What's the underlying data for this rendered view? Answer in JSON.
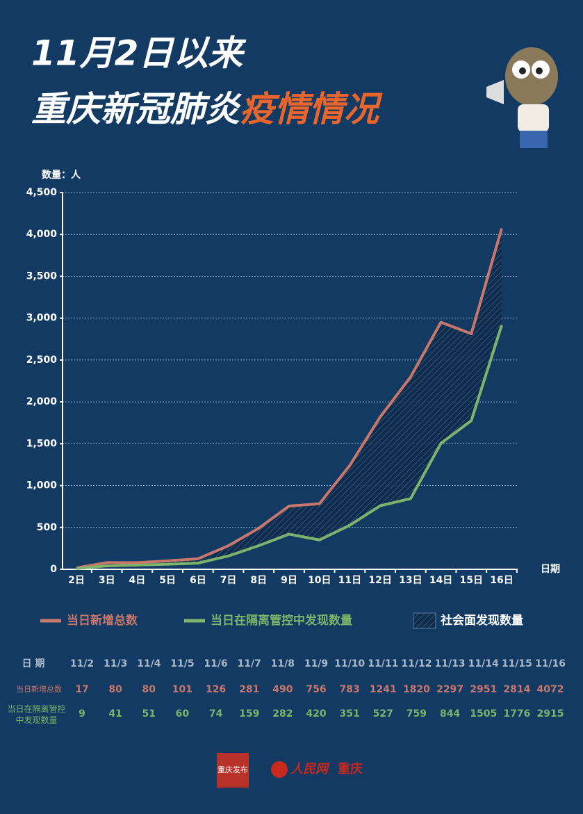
{
  "chart_data": {
    "type": "line",
    "title_line1": "11月2日以来",
    "title_line2_white": "重庆新冠肺炎",
    "title_line2_orange": "疫情情况",
    "y_label": "数量：人",
    "x_label": "日期",
    "categories": [
      "2日",
      "3日",
      "4日",
      "5日",
      "6日",
      "7日",
      "8日",
      "9日",
      "10日",
      "11日",
      "12日",
      "13日",
      "14日",
      "15日",
      "16日"
    ],
    "series": [
      {
        "name": "当日新增总数",
        "color": "#c9776b",
        "values": [
          17,
          80,
          80,
          101,
          126,
          281,
          490,
          756,
          783,
          1241,
          1820,
          2297,
          2951,
          2814,
          4072
        ]
      },
      {
        "name": "当日在隔离管控中发现数量",
        "color": "#7db36a",
        "values": [
          9,
          41,
          51,
          60,
          74,
          159,
          282,
          420,
          351,
          527,
          759,
          844,
          1505,
          1776,
          2915
        ]
      }
    ],
    "area_name": "社会面发现数量",
    "ylim": [
      0,
      4500
    ],
    "yticks": [
      0,
      500,
      {
        "value": 1000,
        "label": "1,000"
      },
      {
        "value": 1500,
        "label": "1,500"
      },
      {
        "value": 2000,
        "label": "2,000"
      },
      {
        "value": 2500,
        "label": "2,500"
      },
      {
        "value": 3000,
        "label": "3,000"
      },
      {
        "value": 3500,
        "label": "3,500"
      },
      {
        "value": 4000,
        "label": "4,000"
      },
      {
        "value": 4500,
        "label": "4,500"
      }
    ],
    "grid": true,
    "table": {
      "header": "日 期",
      "dates": [
        "11/2",
        "11/3",
        "11/4",
        "11/5",
        "11/6",
        "11/7",
        "11/8",
        "11/9",
        "11/10",
        "11/11",
        "11/12",
        "11/13",
        "11/14",
        "11/15",
        "11/16"
      ],
      "row_labels": [
        "当日新增总数",
        "当日在隔离管控中发现数量"
      ]
    },
    "footer": {
      "logo1": "重庆发布",
      "logo2": "人民网",
      "logo2_city": "重庆"
    }
  }
}
